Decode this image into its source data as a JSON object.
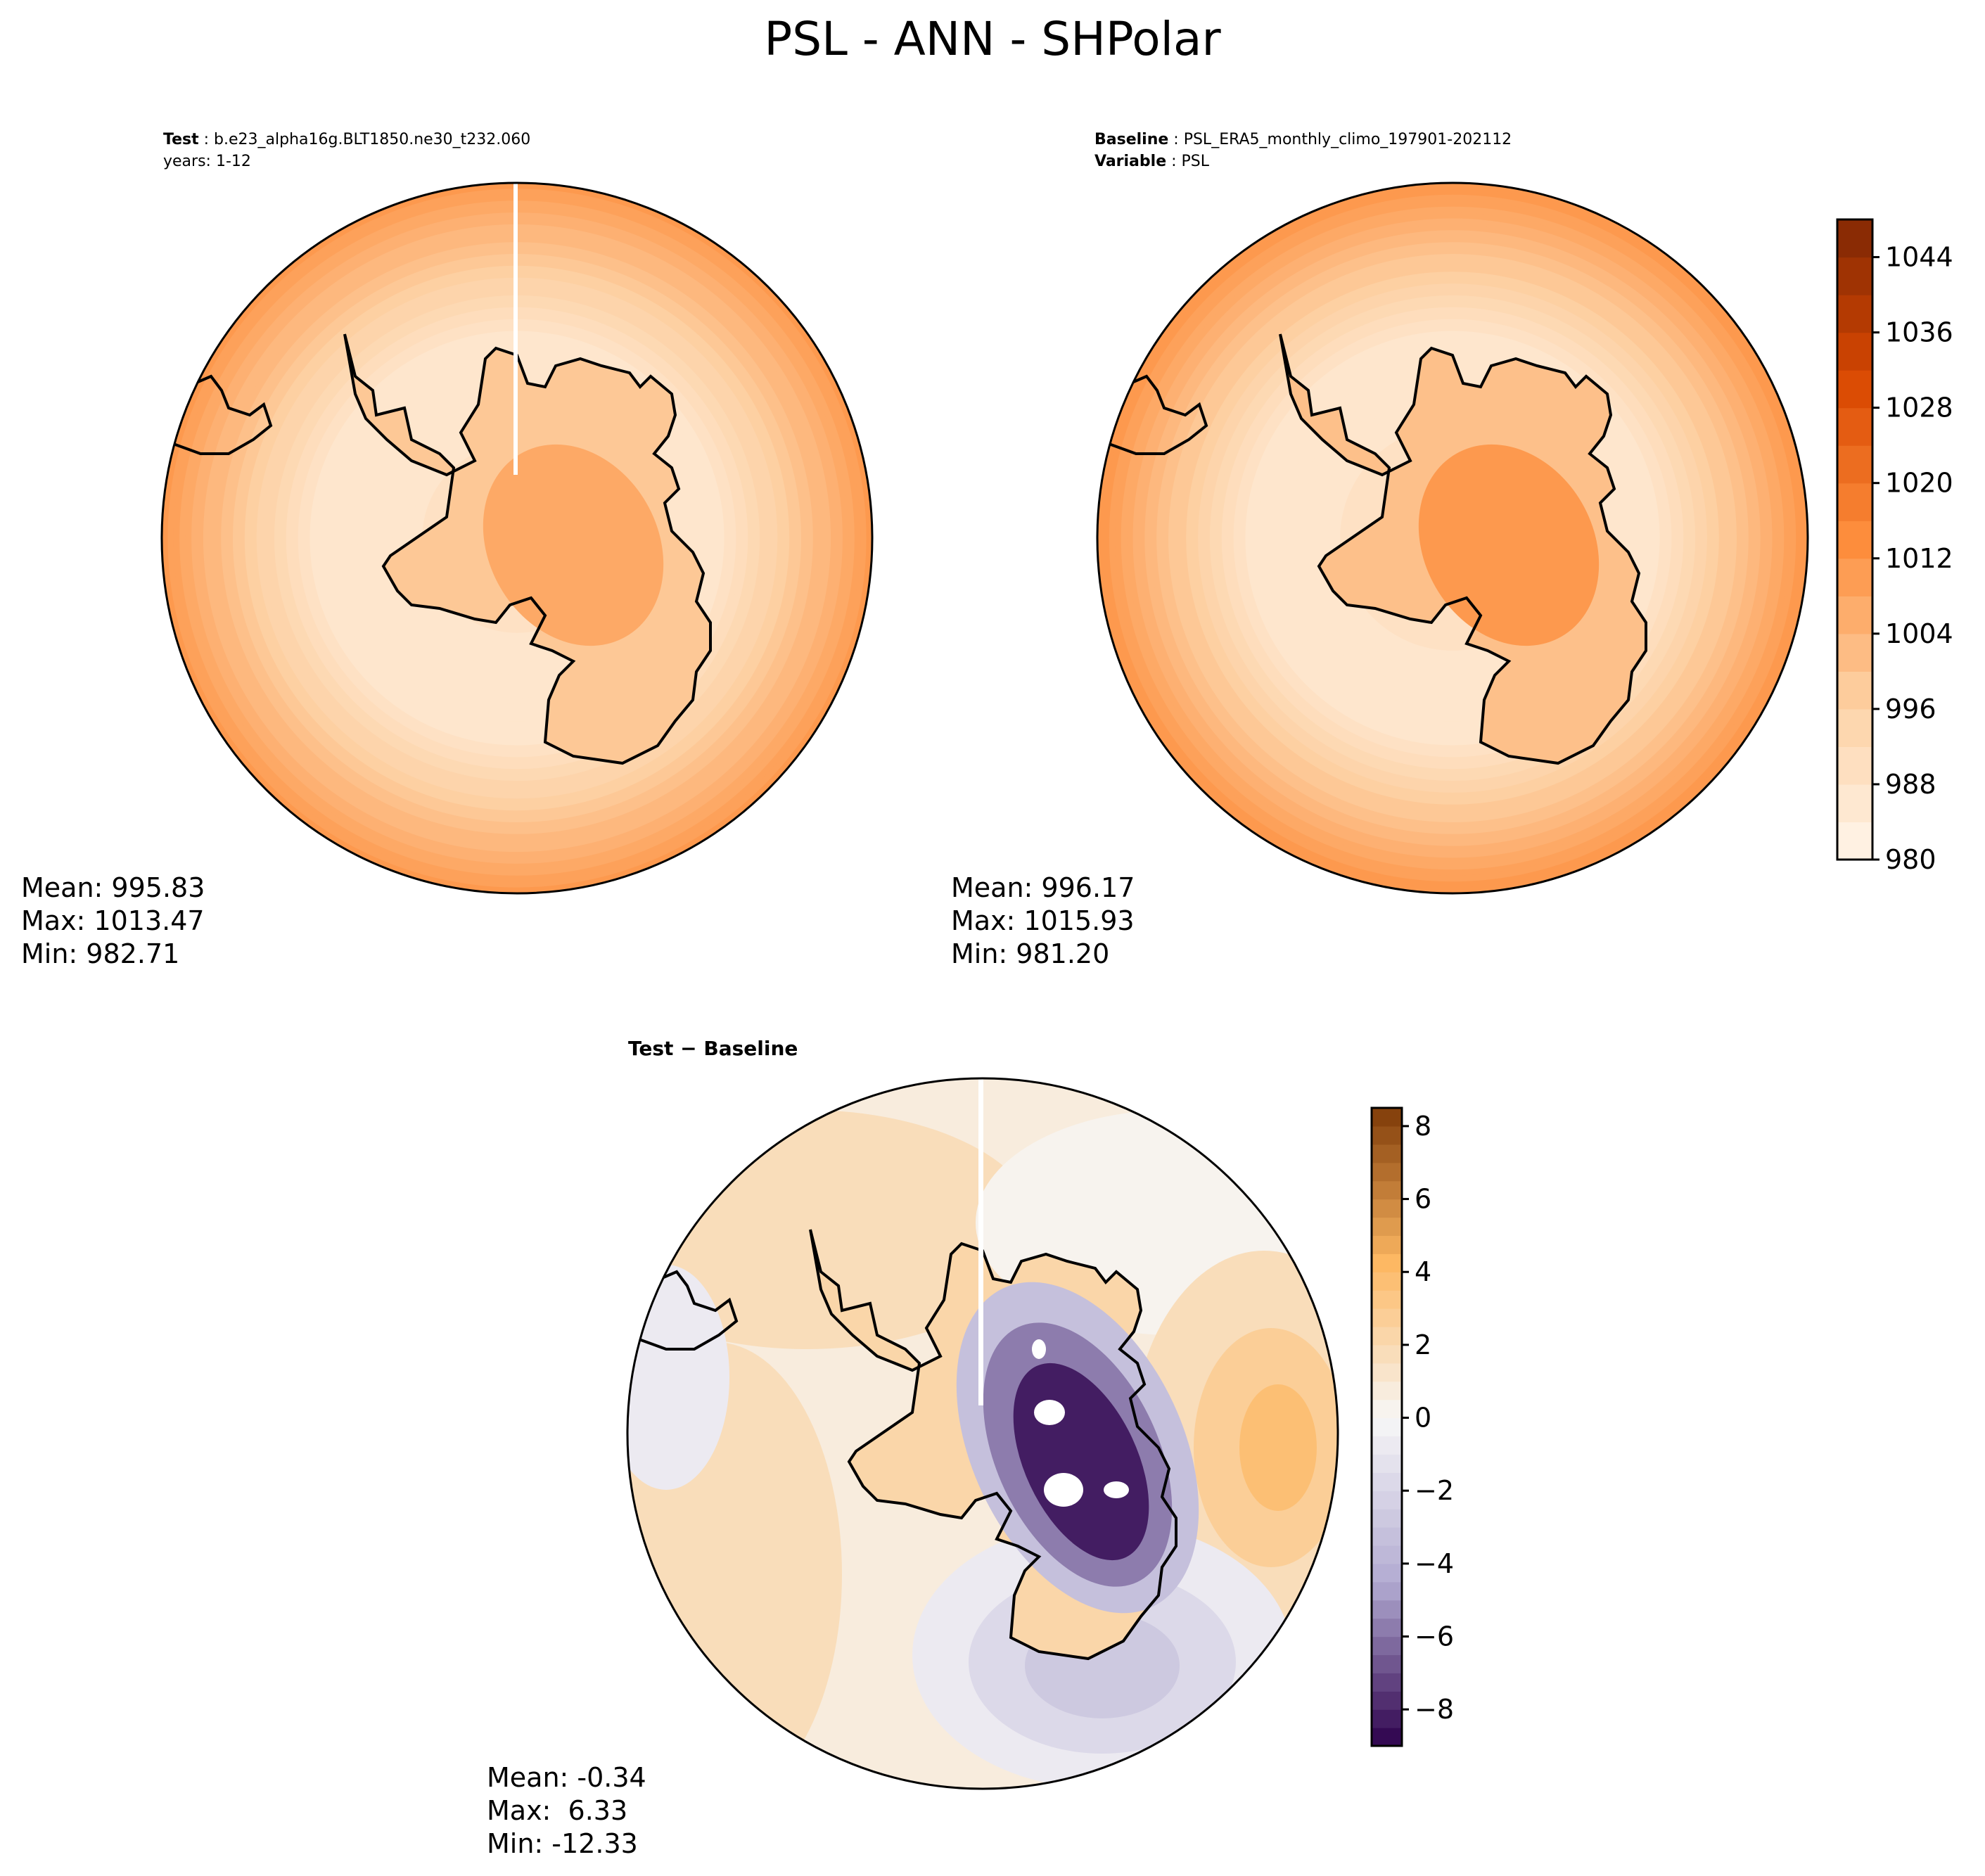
{
  "figure": {
    "suptitle": "PSL - ANN - SHPolar"
  },
  "chart_data": [
    {
      "type": "heatmap",
      "panel": "test",
      "projection": "south-polar-stereographic",
      "title_label": "Test",
      "title_value": "b.e23_alpha16g.BLT1850.ne30_t232.060",
      "subtitle": "years: 1-12",
      "stats": [
        "Mean: 995.83",
        "Max: 1013.47",
        "Min: 982.71"
      ],
      "field": {
        "center": 1006,
        "coast": 990,
        "mid": 986,
        "edge": 1010
      }
    },
    {
      "type": "heatmap",
      "panel": "baseline",
      "projection": "south-polar-stereographic",
      "title_label": "Baseline",
      "title_value": "PSL_ERA5_monthly_climo_197901-202112",
      "subtitle_label": "Variable",
      "subtitle_value": "PSL",
      "stats": [
        "Mean: 996.17",
        "Max: 1015.93",
        "Min: 981.20"
      ],
      "field": {
        "center": 1010,
        "coast": 991,
        "mid": 986,
        "edge": 1011
      },
      "colorbar": {
        "cmap": "Oranges",
        "range": [
          980,
          1048
        ],
        "step": 4,
        "ticks": [
          980,
          988,
          996,
          1004,
          1012,
          1020,
          1028,
          1036,
          1044
        ],
        "tick_labels": [
          "980",
          "988",
          "996",
          "1004",
          "1012",
          "1020",
          "1028",
          "1036",
          "1044"
        ]
      }
    },
    {
      "type": "heatmap",
      "panel": "difference",
      "projection": "south-polar-stereographic",
      "title": "Test − Baseline",
      "stats": [
        "Mean: -0.34",
        "Max:  6.33",
        "Min: -12.33"
      ],
      "features": {
        "continent_min": -9,
        "low_anomaly_min": -3.5,
        "high_anomaly_max": 4
      },
      "colorbar": {
        "cmap": "PuOr_r",
        "range": [
          -9,
          8.5
        ],
        "step": 0.5,
        "ticks": [
          -8,
          -6,
          -4,
          -2,
          0,
          2,
          4,
          6,
          8
        ],
        "tick_labels": [
          "−8",
          "−6",
          "−4",
          "−2",
          "0",
          "2",
          "4",
          "6",
          "8"
        ]
      }
    }
  ],
  "colors": {
    "oranges": [
      "#fff5eb",
      "#fdd0a2",
      "#fd8d3c",
      "#d94801",
      "#7f2704"
    ],
    "puor": [
      "#2d004b",
      "#b2abd2",
      "#f7f7f7",
      "#fdb863",
      "#7f3b08"
    ]
  }
}
